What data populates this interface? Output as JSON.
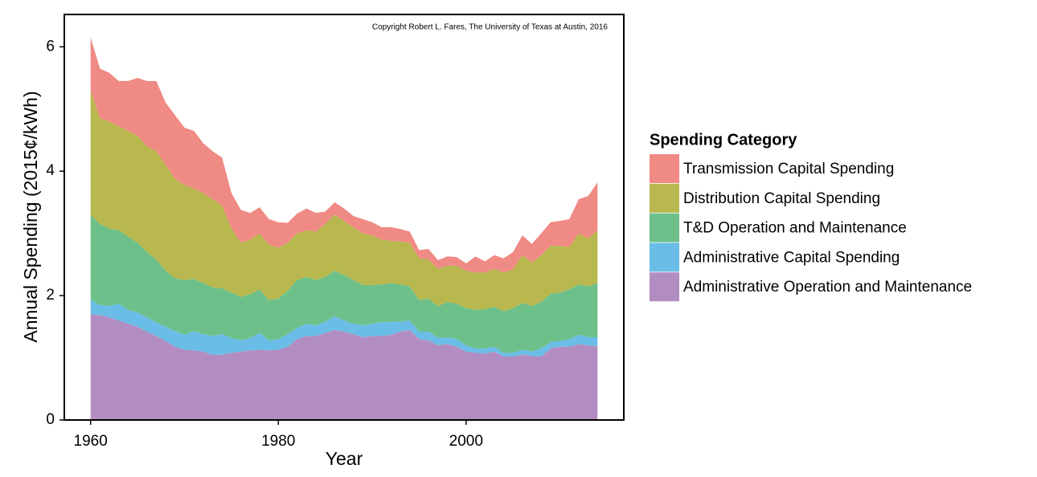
{
  "chart_data": {
    "type": "stacked-area",
    "annotation": "Copyright Robert L. Fares, The University of Texas at Austin, 2016",
    "x_label": "Year",
    "y_label": "Annual Spending (2015¢/kWh)",
    "legend_title": "Spending Category",
    "x": [
      1960,
      1961,
      1962,
      1963,
      1964,
      1965,
      1966,
      1967,
      1968,
      1969,
      1970,
      1971,
      1972,
      1973,
      1974,
      1975,
      1976,
      1977,
      1978,
      1979,
      1980,
      1981,
      1982,
      1983,
      1984,
      1985,
      1986,
      1987,
      1988,
      1989,
      1990,
      1991,
      1992,
      1993,
      1994,
      1995,
      1996,
      1997,
      1998,
      1999,
      2000,
      2001,
      2002,
      2003,
      2004,
      2005,
      2006,
      2007,
      2008,
      2009,
      2010,
      2011,
      2012,
      2013,
      2014
    ],
    "series": [
      {
        "name": "Administrative Operation and Maintenance",
        "color": "#b28dc2",
        "values": [
          1.7,
          1.69,
          1.65,
          1.6,
          1.55,
          1.5,
          1.42,
          1.35,
          1.27,
          1.18,
          1.13,
          1.12,
          1.1,
          1.05,
          1.05,
          1.08,
          1.1,
          1.12,
          1.13,
          1.12,
          1.13,
          1.18,
          1.3,
          1.35,
          1.35,
          1.4,
          1.45,
          1.42,
          1.38,
          1.33,
          1.35,
          1.35,
          1.37,
          1.42,
          1.45,
          1.3,
          1.28,
          1.2,
          1.22,
          1.18,
          1.1,
          1.08,
          1.07,
          1.1,
          1.02,
          1.02,
          1.05,
          1.03,
          1.02,
          1.15,
          1.18,
          1.18,
          1.22,
          1.2,
          1.19
        ]
      },
      {
        "name": "Administrative Capital Spending",
        "color": "#6abde6",
        "values": [
          0.23,
          0.16,
          0.18,
          0.27,
          0.22,
          0.23,
          0.23,
          0.22,
          0.23,
          0.25,
          0.24,
          0.31,
          0.28,
          0.3,
          0.33,
          0.24,
          0.18,
          0.2,
          0.27,
          0.16,
          0.17,
          0.2,
          0.18,
          0.2,
          0.17,
          0.18,
          0.22,
          0.18,
          0.17,
          0.19,
          0.2,
          0.22,
          0.21,
          0.16,
          0.15,
          0.12,
          0.14,
          0.12,
          0.11,
          0.12,
          0.1,
          0.07,
          0.08,
          0.08,
          0.06,
          0.06,
          0.08,
          0.07,
          0.13,
          0.1,
          0.09,
          0.12,
          0.15,
          0.13,
          0.14
        ]
      },
      {
        "name": "T&D Operation and Maintenance",
        "color": "#6ec08a",
        "values": [
          1.37,
          1.3,
          1.25,
          1.18,
          1.18,
          1.12,
          1.05,
          1.01,
          0.9,
          0.85,
          0.88,
          0.84,
          0.82,
          0.78,
          0.74,
          0.73,
          0.7,
          0.7,
          0.7,
          0.65,
          0.65,
          0.7,
          0.77,
          0.75,
          0.73,
          0.72,
          0.73,
          0.73,
          0.7,
          0.65,
          0.62,
          0.61,
          0.62,
          0.6,
          0.55,
          0.51,
          0.53,
          0.51,
          0.57,
          0.57,
          0.6,
          0.62,
          0.63,
          0.64,
          0.67,
          0.72,
          0.75,
          0.73,
          0.75,
          0.78,
          0.78,
          0.8,
          0.81,
          0.82,
          0.87
        ]
      },
      {
        "name": "Distribution Capital Spending",
        "color": "#b8b84f",
        "values": [
          2.0,
          1.7,
          1.72,
          1.67,
          1.7,
          1.72,
          1.7,
          1.74,
          1.7,
          1.6,
          1.53,
          1.45,
          1.45,
          1.42,
          1.33,
          1.03,
          0.87,
          0.88,
          0.9,
          0.89,
          0.82,
          0.77,
          0.75,
          0.75,
          0.78,
          0.85,
          0.9,
          0.87,
          0.85,
          0.83,
          0.8,
          0.72,
          0.68,
          0.69,
          0.7,
          0.67,
          0.63,
          0.6,
          0.58,
          0.61,
          0.6,
          0.6,
          0.59,
          0.61,
          0.62,
          0.62,
          0.77,
          0.7,
          0.75,
          0.77,
          0.75,
          0.68,
          0.82,
          0.77,
          0.85
        ]
      },
      {
        "name": "Transmission Capital Spending",
        "color": "#f08a84",
        "values": [
          0.85,
          0.8,
          0.78,
          0.73,
          0.8,
          0.93,
          1.05,
          1.13,
          1.0,
          1.02,
          0.92,
          0.93,
          0.8,
          0.77,
          0.77,
          0.57,
          0.53,
          0.43,
          0.42,
          0.41,
          0.41,
          0.32,
          0.32,
          0.35,
          0.3,
          0.2,
          0.2,
          0.2,
          0.18,
          0.23,
          0.21,
          0.2,
          0.22,
          0.2,
          0.18,
          0.13,
          0.17,
          0.14,
          0.15,
          0.14,
          0.12,
          0.26,
          0.18,
          0.22,
          0.23,
          0.28,
          0.32,
          0.3,
          0.35,
          0.38,
          0.4,
          0.45,
          0.55,
          0.68,
          0.77
        ]
      }
    ],
    "xlim": [
      1957.2,
      2016.8
    ],
    "ylim": [
      0,
      6.52
    ],
    "xticks": [
      1960,
      1980,
      2000
    ],
    "yticks": [
      0,
      2,
      4,
      6
    ]
  }
}
